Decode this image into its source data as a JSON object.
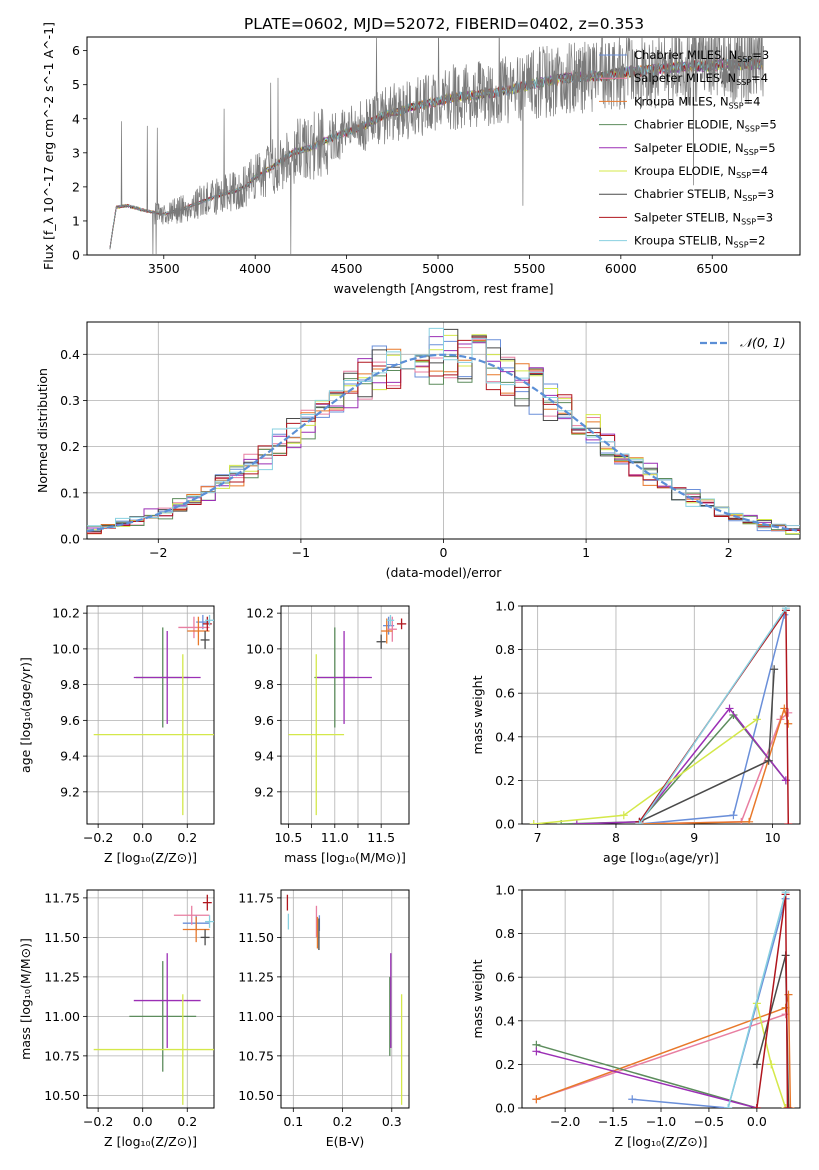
{
  "figure_title": "PLATE=0602, MJD=52072, FIBERID=0402, z=0.353",
  "colors": {
    "Chabrier MILES": "#6a8fd9",
    "Salpeter MILES": "#e87ea1",
    "Kroupa MILES": "#e8782a",
    "Chabrier ELODIE": "#5c8c5c",
    "Salpeter ELODIE": "#9b2fb5",
    "Kroupa ELODIE": "#d4e84a",
    "Chabrier STELIB": "#4a4a4a",
    "Salpeter STELIB": "#b0161e",
    "Kroupa STELIB": "#88d0e0",
    "normal_curve": "#5b8fd6",
    "grid": "#b0b0b0"
  },
  "chart_data": [
    {
      "id": "spectrum",
      "type": "line",
      "title": "PLATE=0602, MJD=52072, FIBERID=0402, z=0.353",
      "xlabel": "wavelength [Angstrom, rest frame]",
      "ylabel": "Flux [f_λ 10^-17 erg cm^-2 s^-1 A^-1]",
      "xlim": [
        3080,
        6980
      ],
      "ylim": [
        0,
        6.4
      ],
      "xticks": [
        "3500",
        "4000",
        "4500",
        "5000",
        "5500",
        "6000",
        "6500"
      ],
      "yticks": [
        "0",
        "1",
        "2",
        "3",
        "4",
        "5",
        "6"
      ],
      "grid": false,
      "legend_position": "top-right",
      "legend": [
        {
          "label": "Chabrier MILES",
          "n_ssp": "3"
        },
        {
          "label": "Salpeter MILES",
          "n_ssp": "4"
        },
        {
          "label": "Kroupa MILES",
          "n_ssp": "4"
        },
        {
          "label": "Chabrier ELODIE",
          "n_ssp": "5"
        },
        {
          "label": "Salpeter ELODIE",
          "n_ssp": "5"
        },
        {
          "label": "Kroupa ELODIE",
          "n_ssp": "4"
        },
        {
          "label": "Chabrier STELIB",
          "n_ssp": "3"
        },
        {
          "label": "Salpeter STELIB",
          "n_ssp": "3"
        },
        {
          "label": "Kroupa STELIB",
          "n_ssp": "2"
        }
      ],
      "continuum": [
        [
          3200,
          0.0
        ],
        [
          3240,
          1.4
        ],
        [
          3300,
          1.45
        ],
        [
          3400,
          1.3
        ],
        [
          3500,
          1.2
        ],
        [
          3600,
          1.35
        ],
        [
          3700,
          1.55
        ],
        [
          3800,
          1.75
        ],
        [
          3900,
          1.9
        ],
        [
          3950,
          2.0
        ],
        [
          4000,
          2.3
        ],
        [
          4100,
          2.6
        ],
        [
          4200,
          3.0
        ],
        [
          4300,
          3.15
        ],
        [
          4400,
          3.4
        ],
        [
          4500,
          3.6
        ],
        [
          4600,
          3.8
        ],
        [
          4700,
          4.1
        ],
        [
          4800,
          4.25
        ],
        [
          4900,
          4.4
        ],
        [
          5000,
          4.5
        ],
        [
          5100,
          4.65
        ],
        [
          5200,
          4.7
        ],
        [
          5300,
          4.75
        ],
        [
          5400,
          4.85
        ],
        [
          5500,
          5.0
        ],
        [
          5600,
          5.1
        ],
        [
          5700,
          5.2
        ],
        [
          5800,
          5.25
        ],
        [
          5900,
          5.25
        ],
        [
          6000,
          5.35
        ],
        [
          6100,
          5.4
        ],
        [
          6200,
          5.45
        ],
        [
          6300,
          5.5
        ],
        [
          6400,
          5.55
        ],
        [
          6500,
          5.55
        ],
        [
          6600,
          5.6
        ],
        [
          6700,
          5.6
        ],
        [
          6780,
          5.6
        ]
      ]
    },
    {
      "id": "residuals",
      "type": "line",
      "xlabel": "(data-model)/error",
      "ylabel": "Normed distribution",
      "xlim": [
        -2.5,
        2.5
      ],
      "ylim": [
        0,
        0.47
      ],
      "xticks": [
        "−2",
        "−1",
        "0",
        "1",
        "2"
      ],
      "yticks": [
        "0.0",
        "0.1",
        "0.2",
        "0.3",
        "0.4"
      ],
      "grid": true,
      "legend_position": "top-right",
      "legend": "𝒩(0, 1)",
      "normal_curve": {
        "mean": 0,
        "sigma": 1
      }
    },
    {
      "id": "age_vs_Z",
      "type": "scatter",
      "xlabel": "Z [log₁₀(Z/Z⊙)]",
      "ylabel": "age  [log₁₀(age/yr)]",
      "xlim": [
        -0.25,
        0.32
      ],
      "ylim": [
        9.02,
        10.24
      ],
      "xticks": [
        "−0.2",
        "0.0",
        "0.2"
      ],
      "yticks": [
        "9.2",
        "9.4",
        "9.6",
        "9.8",
        "10.0",
        "10.2"
      ],
      "grid": true,
      "points": [
        {
          "m": "Chabrier MILES",
          "x": 0.27,
          "y": 10.15,
          "xe": 0.03,
          "ye": 0.04
        },
        {
          "m": "Salpeter MILES",
          "x": 0.23,
          "y": 10.12,
          "xe": 0.07,
          "ye": 0.06
        },
        {
          "m": "Kroupa MILES",
          "x": 0.25,
          "y": 10.1,
          "xe": 0.05,
          "ye": 0.08
        },
        {
          "m": "Chabrier ELODIE",
          "x": 0.09,
          "y": 9.84,
          "xe": 0.12,
          "ye": 0.28
        },
        {
          "m": "Salpeter ELODIE",
          "x": 0.11,
          "y": 9.84,
          "xe": 0.15,
          "ye": 0.26
        },
        {
          "m": "Kroupa ELODIE",
          "x": 0.18,
          "y": 9.52,
          "xe": 0.4,
          "ye": 0.45
        },
        {
          "m": "Chabrier STELIB",
          "x": 0.28,
          "y": 10.05,
          "xe": 0.02,
          "ye": 0.05
        },
        {
          "m": "Salpeter STELIB",
          "x": 0.29,
          "y": 10.14,
          "xe": 0.02,
          "ye": 0.04
        },
        {
          "m": "Kroupa STELIB",
          "x": 0.3,
          "y": 10.16,
          "xe": 0.02,
          "ye": 0.03
        }
      ]
    },
    {
      "id": "age_vs_mass",
      "type": "scatter",
      "xlabel": "mass [log₁₀(M/M⊙)]",
      "ylabel": "",
      "xlim": [
        10.42,
        11.8
      ],
      "ylim": [
        9.02,
        10.24
      ],
      "xticks": [
        "10.5",
        "10.75",
        "11.0",
        "11.25",
        "11.5"
      ],
      "xticklabels_shown": [
        "10.5",
        "11.0",
        "11.5"
      ],
      "yticks": [
        "9.2",
        "9.4",
        "9.6",
        "9.8",
        "10.0",
        "10.2"
      ],
      "grid": true,
      "points": [
        {
          "m": "Chabrier MILES",
          "x": 11.58,
          "y": 10.13,
          "xe": 0.06,
          "ye": 0.05
        },
        {
          "m": "Salpeter MILES",
          "x": 11.62,
          "y": 10.11,
          "xe": 0.05,
          "ye": 0.07
        },
        {
          "m": "Kroupa MILES",
          "x": 11.56,
          "y": 10.1,
          "xe": 0.06,
          "ye": 0.07
        },
        {
          "m": "Chabrier ELODIE",
          "x": 11.0,
          "y": 9.84,
          "xe": 0.22,
          "ye": 0.28
        },
        {
          "m": "Salpeter ELODIE",
          "x": 11.1,
          "y": 9.84,
          "xe": 0.3,
          "ye": 0.26
        },
        {
          "m": "Kroupa ELODIE",
          "x": 10.8,
          "y": 9.52,
          "xe": 0.3,
          "ye": 0.45
        },
        {
          "m": "Chabrier STELIB",
          "x": 11.5,
          "y": 10.04,
          "xe": 0.05,
          "ye": 0.04
        },
        {
          "m": "Salpeter STELIB",
          "x": 11.72,
          "y": 10.14,
          "xe": 0.05,
          "ye": 0.03
        },
        {
          "m": "Kroupa STELIB",
          "x": 11.6,
          "y": 10.16,
          "xe": 0.04,
          "ye": 0.03
        }
      ]
    },
    {
      "id": "weight_vs_age",
      "type": "line",
      "xlabel": "age  [log₁₀(age/yr)]",
      "ylabel": "mass weight",
      "xlim": [
        6.8,
        10.35
      ],
      "ylim": [
        0,
        1
      ],
      "xticks": [
        "7",
        "8",
        "9",
        "10"
      ],
      "yticks": [
        "0.0",
        "0.2",
        "0.4",
        "0.6",
        "0.8",
        "1.0"
      ],
      "grid": true,
      "series": [
        {
          "m": "Chabrier MILES",
          "points": [
            [
              8.3,
              0.0
            ],
            [
              9.5,
              0.04
            ],
            [
              10.15,
              0.96
            ]
          ]
        },
        {
          "m": "Salpeter MILES",
          "points": [
            [
              8.3,
              0.0
            ],
            [
              9.6,
              0.01
            ],
            [
              10.1,
              0.48
            ],
            [
              10.2,
              0.51
            ]
          ]
        },
        {
          "m": "Kroupa MILES",
          "points": [
            [
              8.3,
              0.0
            ],
            [
              9.7,
              0.01
            ],
            [
              10.15,
              0.53
            ],
            [
              10.2,
              0.46
            ]
          ]
        },
        {
          "m": "Chabrier ELODIE",
          "points": [
            [
              7.3,
              0.0
            ],
            [
              8.3,
              0.01
            ],
            [
              9.5,
              0.5
            ],
            [
              10.17,
              0.2
            ]
          ]
        },
        {
          "m": "Salpeter ELODIE",
          "points": [
            [
              7.5,
              0.0
            ],
            [
              8.3,
              0.01
            ],
            [
              9.45,
              0.53
            ],
            [
              10.17,
              0.2
            ]
          ]
        },
        {
          "m": "Kroupa ELODIE",
          "points": [
            [
              6.95,
              0.0
            ],
            [
              8.1,
              0.04
            ],
            [
              9.8,
              0.48
            ]
          ]
        },
        {
          "m": "Chabrier STELIB",
          "points": [
            [
              8.3,
              0.01
            ],
            [
              9.95,
              0.29
            ],
            [
              10.02,
              0.71
            ]
          ]
        },
        {
          "m": "Salpeter STELIB",
          "points": [
            [
              8.3,
              0.01
            ],
            [
              10.17,
              0.98
            ],
            [
              10.2,
              0.0
            ]
          ]
        },
        {
          "m": "Kroupa STELIB",
          "points": [
            [
              8.3,
              0.0
            ],
            [
              10.17,
              0.99
            ]
          ]
        }
      ]
    },
    {
      "id": "mass_vs_Z",
      "type": "scatter",
      "xlabel": "Z [log₁₀(Z/Z⊙)]",
      "ylabel": "mass [log₁₀(M/M⊙)]",
      "xlim": [
        -0.25,
        0.32
      ],
      "ylim": [
        10.42,
        11.8
      ],
      "xticks": [
        "−0.2",
        "0.0",
        "0.2"
      ],
      "yticks": [
        "10.50",
        "10.75",
        "11.00",
        "11.25",
        "11.50",
        "11.75"
      ],
      "grid": true,
      "points": [
        {
          "m": "Chabrier MILES",
          "x": 0.24,
          "y": 11.59,
          "xe": 0.06,
          "ye": 0.05
        },
        {
          "m": "Salpeter MILES",
          "x": 0.22,
          "y": 11.64,
          "xe": 0.08,
          "ye": 0.06
        },
        {
          "m": "Kroupa MILES",
          "x": 0.24,
          "y": 11.55,
          "xe": 0.06,
          "ye": 0.08
        },
        {
          "m": "Chabrier ELODIE",
          "x": 0.09,
          "y": 11.0,
          "xe": 0.15,
          "ye": 0.35
        },
        {
          "m": "Salpeter ELODIE",
          "x": 0.11,
          "y": 11.1,
          "xe": 0.15,
          "ye": 0.3
        },
        {
          "m": "Kroupa ELODIE",
          "x": 0.18,
          "y": 10.79,
          "xe": 0.4,
          "ye": 0.35
        },
        {
          "m": "Chabrier STELIB",
          "x": 0.28,
          "y": 11.5,
          "xe": 0.02,
          "ye": 0.05
        },
        {
          "m": "Salpeter STELIB",
          "x": 0.29,
          "y": 11.72,
          "xe": 0.02,
          "ye": 0.05
        },
        {
          "m": "Kroupa STELIB",
          "x": 0.3,
          "y": 11.6,
          "xe": 0.02,
          "ye": 0.04
        }
      ]
    },
    {
      "id": "mass_vs_ebv",
      "type": "scatter",
      "xlabel": "E(B-V)",
      "ylabel": "",
      "xlim": [
        0.075,
        0.335
      ],
      "ylim": [
        10.42,
        11.8
      ],
      "xticks": [
        "0.1",
        "0.2",
        "0.3"
      ],
      "yticks": [
        "10.50",
        "10.75",
        "11.00",
        "11.25",
        "11.50",
        "11.75"
      ],
      "grid": true,
      "points": [
        {
          "m": "Chabrier MILES",
          "x": 0.153,
          "y": 11.59,
          "xe": 0,
          "ye": 0.05
        },
        {
          "m": "Salpeter MILES",
          "x": 0.147,
          "y": 11.6,
          "xe": 0,
          "ye": 0.1
        },
        {
          "m": "Kroupa MILES",
          "x": 0.149,
          "y": 11.53,
          "xe": 0,
          "ye": 0.1
        },
        {
          "m": "Chabrier ELODIE",
          "x": 0.296,
          "y": 11.0,
          "xe": 0,
          "ye": 0.25
        },
        {
          "m": "Salpeter ELODIE",
          "x": 0.298,
          "y": 11.1,
          "xe": 0,
          "ye": 0.3
        },
        {
          "m": "Kroupa ELODIE",
          "x": 0.32,
          "y": 10.79,
          "xe": 0,
          "ye": 0.35
        },
        {
          "m": "Chabrier STELIB",
          "x": 0.152,
          "y": 11.52,
          "xe": 0,
          "ye": 0.1
        },
        {
          "m": "Salpeter STELIB",
          "x": 0.088,
          "y": 11.72,
          "xe": 0,
          "ye": 0.05
        },
        {
          "m": "Kroupa STELIB",
          "x": 0.09,
          "y": 11.6,
          "xe": 0,
          "ye": 0.05
        }
      ]
    },
    {
      "id": "weight_vs_Z",
      "type": "line",
      "xlabel": "Z [log₁₀(Z/Z⊙)]",
      "ylabel": "mass weight",
      "xlim": [
        -2.45,
        0.45
      ],
      "ylim": [
        0,
        1
      ],
      "xticks": [
        "−2.0",
        "−1.5",
        "−1.0",
        "−0.5",
        "0.0"
      ],
      "yticks": [
        "0.0",
        "0.2",
        "0.4",
        "0.6",
        "0.8",
        "1.0"
      ],
      "grid": true,
      "series": [
        {
          "m": "Chabrier MILES",
          "points": [
            [
              -1.3,
              0.04
            ],
            [
              -0.3,
              0.0
            ],
            [
              0.3,
              0.96
            ]
          ]
        },
        {
          "m": "Salpeter MILES",
          "points": [
            [
              -2.3,
              0.04
            ],
            [
              0.3,
              0.43
            ]
          ]
        },
        {
          "m": "Kroupa MILES",
          "points": [
            [
              -2.3,
              0.04
            ],
            [
              0.3,
              0.46
            ],
            [
              0.33,
              0.52
            ],
            [
              0.35,
              0.0
            ]
          ]
        },
        {
          "m": "Chabrier ELODIE",
          "points": [
            [
              -2.3,
              0.29
            ],
            [
              0.0,
              0.0
            ]
          ]
        },
        {
          "m": "Salpeter ELODIE",
          "points": [
            [
              -2.3,
              0.26
            ],
            [
              0.0,
              0.0
            ]
          ]
        },
        {
          "m": "Kroupa ELODIE",
          "points": [
            [
              0.0,
              0.48
            ],
            [
              0.15,
              0.2
            ],
            [
              0.3,
              0.0
            ]
          ]
        },
        {
          "m": "Chabrier STELIB",
          "points": [
            [
              0.0,
              0.2
            ],
            [
              0.3,
              0.7
            ],
            [
              0.33,
              0.0
            ]
          ]
        },
        {
          "m": "Salpeter STELIB",
          "points": [
            [
              0.0,
              0.0
            ],
            [
              0.3,
              0.98
            ],
            [
              0.32,
              0.0
            ]
          ]
        },
        {
          "m": "Kroupa STELIB",
          "points": [
            [
              -0.3,
              0.0
            ],
            [
              0.3,
              0.99
            ]
          ]
        }
      ]
    }
  ]
}
